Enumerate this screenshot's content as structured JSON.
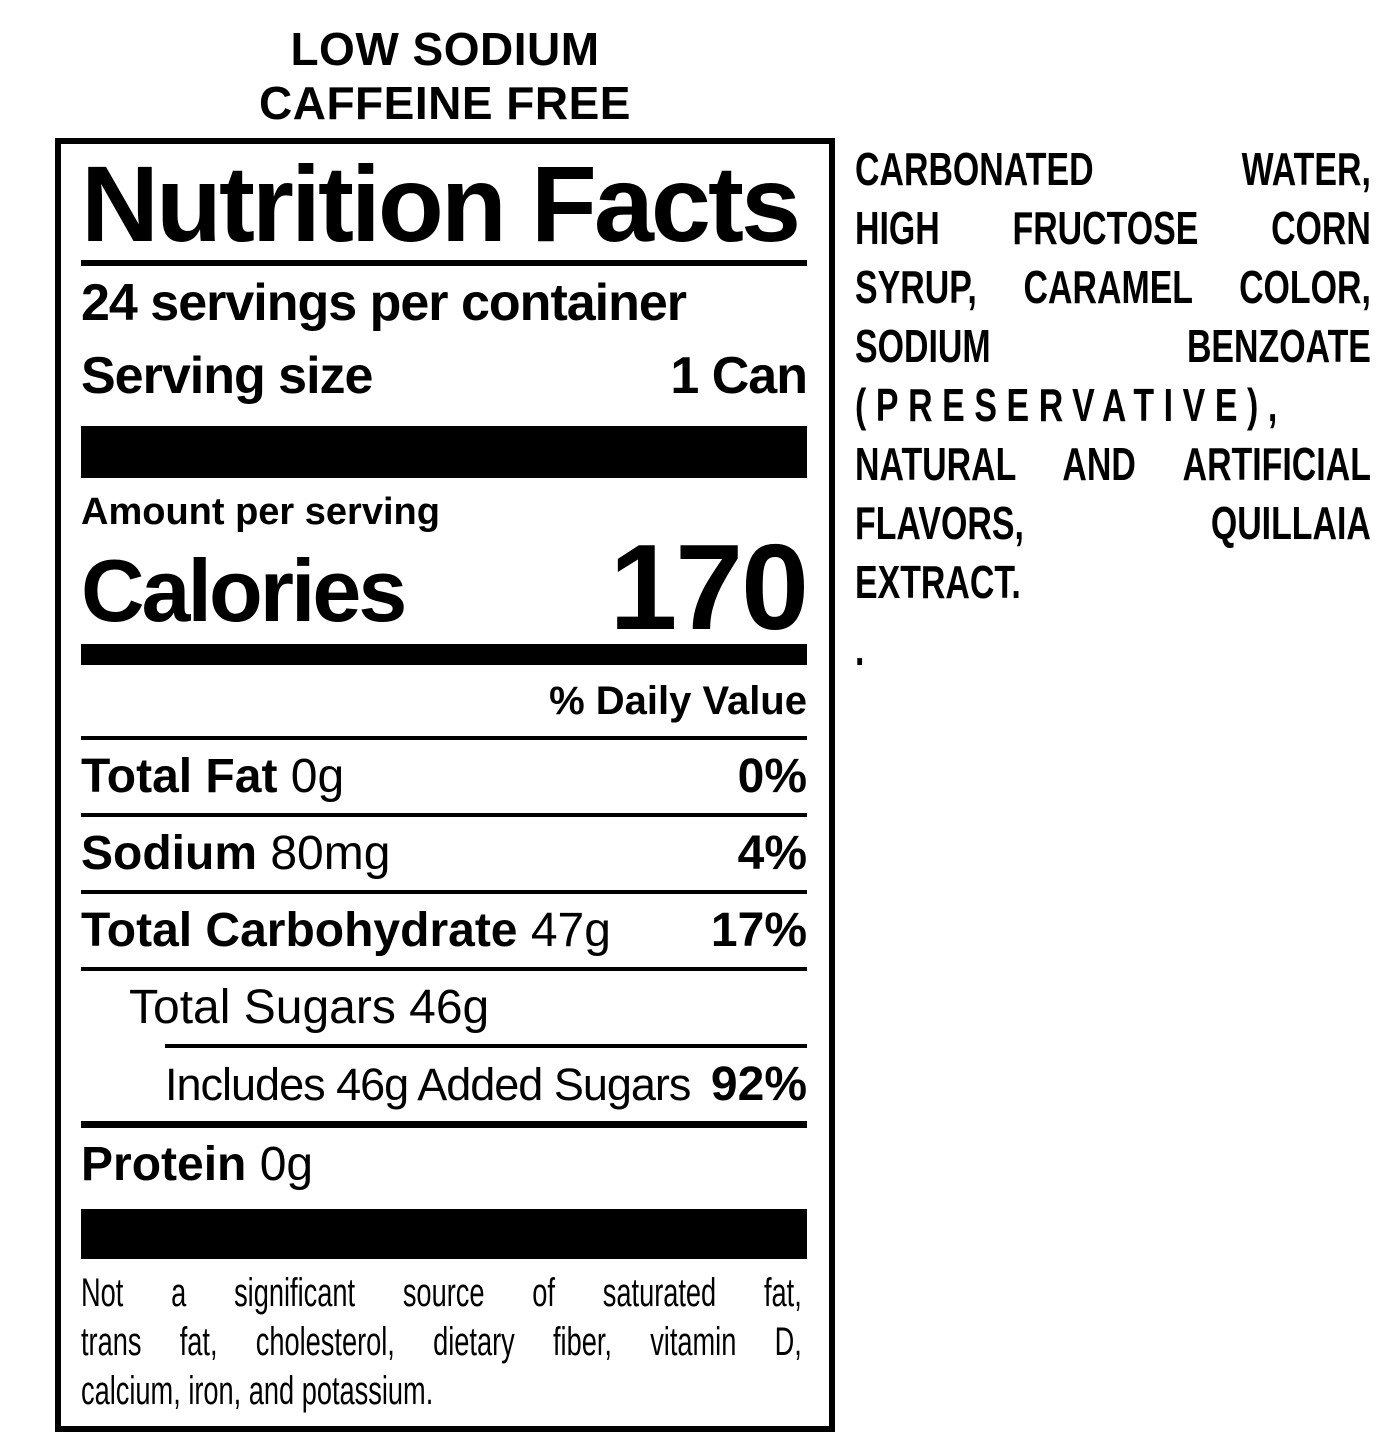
{
  "colors": {
    "foreground": "#000000",
    "background": "#ffffff"
  },
  "header": {
    "line1": "LOW SODIUM",
    "line2": "CAFFEINE FREE"
  },
  "label": {
    "title": "Nutrition Facts",
    "servings_per_container": "24 servings per container",
    "serving_size_label": "Serving size",
    "serving_size_value": "1 Can",
    "amount_per_serving": "Amount per serving",
    "calories_label": "Calories",
    "calories_value": "170",
    "daily_value_header": "% Daily Value",
    "rows": [
      {
        "name": "Total Fat",
        "amount": "0g",
        "dv": "0%"
      },
      {
        "name": "Sodium",
        "amount": "80mg",
        "dv": "4%"
      },
      {
        "name": "Total Carbohydrate",
        "amount": "47g",
        "dv": "17%"
      }
    ],
    "total_sugars": {
      "text": "Total Sugars 46g"
    },
    "added_sugars": {
      "text": "Includes 46g Added Sugars",
      "dv": "92%"
    },
    "protein": {
      "name": "Protein",
      "amount": "0g"
    },
    "footnote_lines": [
      "Not a significant source of saturated fat,",
      "trans fat, cholesterol, dietary fiber, vitamin D,",
      "calcium, iron, and potassium."
    ]
  },
  "ingredients": {
    "lines": [
      "CARBONATED WATER,",
      "HIGH FRUCTOSE CORN",
      "SYRUP, CARAMEL COLOR,",
      "SODIUM BENZOATE",
      "(PRESERVATIVE),",
      "NATURAL AND ARTIFICIAL",
      "FLAVORS, QUILLAIA",
      "EXTRACT.",
      "."
    ]
  }
}
